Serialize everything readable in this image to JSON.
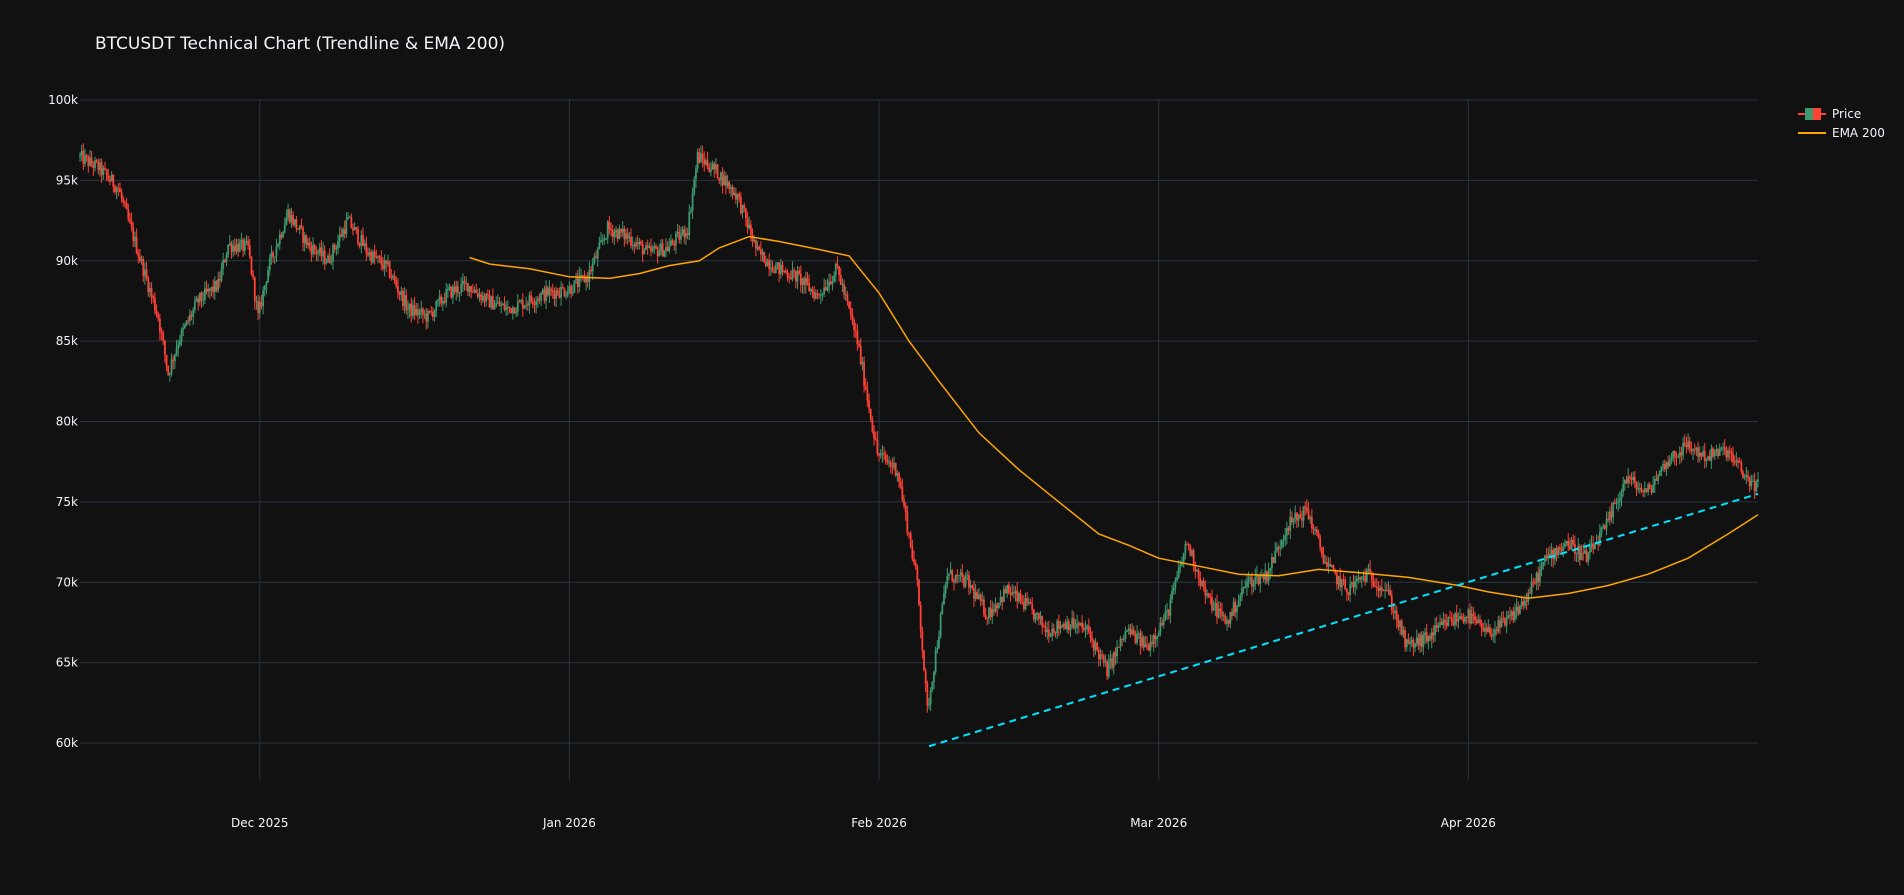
{
  "chart_data": {
    "type": "candlestick",
    "title": "BTCUSDT Technical Chart (Trendline & EMA 200)",
    "xlabel": "",
    "ylabel": "",
    "x_range": [
      "2025-11-13",
      "2026-04-30"
    ],
    "y_range": [
      57700,
      100000
    ],
    "y_ticks": [
      60000,
      65000,
      70000,
      75000,
      80000,
      85000,
      90000,
      95000,
      100000
    ],
    "y_tick_labels": [
      "60k",
      "65k",
      "70k",
      "75k",
      "80k",
      "85k",
      "90k",
      "95k",
      "100k"
    ],
    "x_ticks": [
      "2025-12-01",
      "2026-01-01",
      "2026-02-01",
      "2026-03-01",
      "2026-04-01"
    ],
    "x_tick_labels": [
      "Dec 2025",
      "Jan 2026",
      "Feb 2026",
      "Mar 2026",
      "Apr 2026"
    ],
    "grid": true,
    "legend_position": "top-right",
    "colors": {
      "background": "#111111",
      "grid": "#283442",
      "text": "#f2f5fa",
      "increasing": "#3d9970",
      "decreasing": "#ff4136",
      "ema": "#ffa500",
      "trendline": "#00e5ff"
    },
    "price_path": [
      [
        "2025-11-13",
        96500
      ],
      [
        "2025-11-15",
        95800
      ],
      [
        "2025-11-17",
        94500
      ],
      [
        "2025-11-19",
        90500
      ],
      [
        "2025-11-21",
        86500
      ],
      [
        "2025-11-22",
        83000
      ],
      [
        "2025-11-23",
        85000
      ],
      [
        "2025-11-25",
        87500
      ],
      [
        "2025-11-27",
        88500
      ],
      [
        "2025-11-28",
        91000
      ],
      [
        "2025-11-30",
        90800
      ],
      [
        "2025-12-01",
        86500
      ],
      [
        "2025-12-02",
        89500
      ],
      [
        "2025-12-04",
        93000
      ],
      [
        "2025-12-06",
        91000
      ],
      [
        "2025-12-08",
        90000
      ],
      [
        "2025-12-10",
        92500
      ],
      [
        "2025-12-12",
        90500
      ],
      [
        "2025-12-14",
        89500
      ],
      [
        "2025-12-16",
        87000
      ],
      [
        "2025-12-18",
        86500
      ],
      [
        "2025-12-20",
        88000
      ],
      [
        "2025-12-22",
        88500
      ],
      [
        "2025-12-24",
        87500
      ],
      [
        "2025-12-26",
        87000
      ],
      [
        "2025-12-28",
        87500
      ],
      [
        "2025-12-30",
        88000
      ],
      [
        "2026-01-01",
        88200
      ],
      [
        "2026-01-03",
        89000
      ],
      [
        "2026-01-05",
        92000
      ],
      [
        "2026-01-07",
        91500
      ],
      [
        "2026-01-09",
        90500
      ],
      [
        "2026-01-11",
        90800
      ],
      [
        "2026-01-13",
        92000
      ],
      [
        "2026-01-14",
        96500
      ],
      [
        "2026-01-16",
        95500
      ],
      [
        "2026-01-18",
        94000
      ],
      [
        "2026-01-20",
        90500
      ],
      [
        "2026-01-22",
        89500
      ],
      [
        "2026-01-24",
        89000
      ],
      [
        "2026-01-26",
        87800
      ],
      [
        "2026-01-28",
        89500
      ],
      [
        "2026-01-30",
        85000
      ],
      [
        "2026-02-01",
        78000
      ],
      [
        "2026-02-03",
        77000
      ],
      [
        "2026-02-05",
        70000
      ],
      [
        "2026-02-06",
        62000
      ],
      [
        "2026-02-08",
        70500
      ],
      [
        "2026-02-10",
        70000
      ],
      [
        "2026-02-12",
        68000
      ],
      [
        "2026-02-14",
        69500
      ],
      [
        "2026-02-16",
        68500
      ],
      [
        "2026-02-18",
        67000
      ],
      [
        "2026-02-20",
        67500
      ],
      [
        "2026-02-22",
        67000
      ],
      [
        "2026-02-24",
        64500
      ],
      [
        "2026-02-26",
        67000
      ],
      [
        "2026-02-28",
        66000
      ],
      [
        "2026-03-02",
        68000
      ],
      [
        "2026-03-04",
        72500
      ],
      [
        "2026-03-06",
        69000
      ],
      [
        "2026-03-08",
        67500
      ],
      [
        "2026-03-10",
        70000
      ],
      [
        "2026-03-12",
        70500
      ],
      [
        "2026-03-14",
        73500
      ],
      [
        "2026-03-16",
        74500
      ],
      [
        "2026-03-18",
        71000
      ],
      [
        "2026-03-20",
        69500
      ],
      [
        "2026-03-22",
        70500
      ],
      [
        "2026-03-24",
        69500
      ],
      [
        "2026-03-26",
        66000
      ],
      [
        "2026-03-28",
        66500
      ],
      [
        "2026-03-30",
        67500
      ],
      [
        "2026-04-01",
        68000
      ],
      [
        "2026-04-03",
        66800
      ],
      [
        "2026-04-05",
        67500
      ],
      [
        "2026-04-07",
        69000
      ],
      [
        "2026-04-09",
        71500
      ],
      [
        "2026-04-11",
        72500
      ],
      [
        "2026-04-13",
        71500
      ],
      [
        "2026-04-15",
        73500
      ],
      [
        "2026-04-17",
        76500
      ],
      [
        "2026-04-19",
        75500
      ],
      [
        "2026-04-21",
        77500
      ],
      [
        "2026-04-23",
        78500
      ],
      [
        "2026-04-25",
        77800
      ],
      [
        "2026-04-27",
        78200
      ],
      [
        "2026-04-29",
        76500
      ],
      [
        "2026-04-30",
        76000
      ]
    ],
    "series": [
      {
        "name": "Price",
        "type": "candlestick"
      },
      {
        "name": "EMA 200",
        "type": "line",
        "points": [
          [
            "2025-12-22",
            90200
          ],
          [
            "2025-12-24",
            89800
          ],
          [
            "2025-12-28",
            89500
          ],
          [
            "2026-01-01",
            89000
          ],
          [
            "2026-01-05",
            88900
          ],
          [
            "2026-01-08",
            89200
          ],
          [
            "2026-01-11",
            89700
          ],
          [
            "2026-01-14",
            90000
          ],
          [
            "2026-01-16",
            90800
          ],
          [
            "2026-01-19",
            91500
          ],
          [
            "2026-01-22",
            91200
          ],
          [
            "2026-01-26",
            90700
          ],
          [
            "2026-01-29",
            90300
          ],
          [
            "2026-02-01",
            88000
          ],
          [
            "2026-02-04",
            85000
          ],
          [
            "2026-02-07",
            82500
          ],
          [
            "2026-02-11",
            79300
          ],
          [
            "2026-02-15",
            77000
          ],
          [
            "2026-02-19",
            75000
          ],
          [
            "2026-02-23",
            73000
          ],
          [
            "2026-02-26",
            72300
          ],
          [
            "2026-03-01",
            71500
          ],
          [
            "2026-03-05",
            71000
          ],
          [
            "2026-03-09",
            70500
          ],
          [
            "2026-03-13",
            70400
          ],
          [
            "2026-03-17",
            70800
          ],
          [
            "2026-03-21",
            70600
          ],
          [
            "2026-03-26",
            70300
          ],
          [
            "2026-03-31",
            69800
          ],
          [
            "2026-04-03",
            69400
          ],
          [
            "2026-04-07",
            69000
          ],
          [
            "2026-04-11",
            69300
          ],
          [
            "2026-04-15",
            69800
          ],
          [
            "2026-04-19",
            70500
          ],
          [
            "2026-04-23",
            71500
          ],
          [
            "2026-04-27",
            73000
          ],
          [
            "2026-04-30",
            74200
          ]
        ]
      }
    ],
    "trendline": {
      "points": [
        [
          "2026-02-06",
          59800
        ],
        [
          "2026-04-30",
          75500
        ]
      ]
    }
  }
}
